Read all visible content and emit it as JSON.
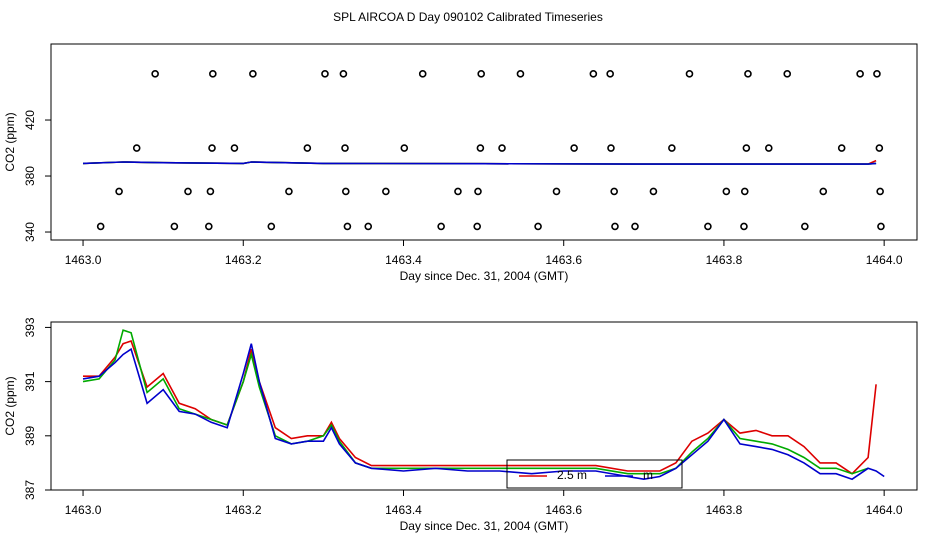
{
  "title": "SPL AIRCOA D  Day 090102  Calibrated Timeseries",
  "chart_data": [
    {
      "type": "line",
      "xlabel": "Day since Dec. 31, 2004 (GMT)",
      "ylabel": "CO2 (ppm)",
      "xlim": [
        1462.96,
        1464.041
      ],
      "ylim": [
        334.3,
        474.3
      ],
      "xticks": [
        {
          "value": 1463,
          "label": "1463.0"
        },
        {
          "value": 1463.2,
          "label": "1463.2"
        },
        {
          "value": 1463.4,
          "label": "1463.4"
        },
        {
          "value": 1463.6,
          "label": "1463.6"
        },
        {
          "value": 1463.8,
          "label": "1463.8"
        },
        {
          "value": 1464,
          "label": "1464.0"
        }
      ],
      "yticks": [
        340,
        380,
        420
      ],
      "x": [
        1463.0,
        1463.05,
        1463.1,
        1463.2,
        1463.21,
        1463.3,
        1463.5,
        1463.7,
        1463.9,
        1463.98,
        1463.99
      ],
      "series": [
        {
          "color": "#dd0000",
          "values": [
            389,
            390,
            389.5,
            389,
            390,
            389,
            388.8,
            388.5,
            388.5,
            388.5,
            391
          ]
        },
        {
          "color": "#00aa00",
          "values": [
            389,
            390,
            389.5,
            389,
            390,
            389,
            388.8,
            388.5,
            388.5,
            388.5,
            389
          ]
        },
        {
          "color": "#0000cc",
          "values": [
            389,
            390,
            389.5,
            389,
            390,
            389,
            388.8,
            388.5,
            388.5,
            388.5,
            389
          ]
        }
      ],
      "points": {
        "color": "#000000",
        "x": [
          1463.09,
          1463.162,
          1463.212,
          1463.302,
          1463.325,
          1463.424,
          1463.497,
          1463.546,
          1463.637,
          1463.658,
          1463.757,
          1463.83,
          1463.879,
          1463.97,
          1463.991,
          1463.067,
          1463.161,
          1463.189,
          1463.28,
          1463.327,
          1463.401,
          1463.496,
          1463.523,
          1463.613,
          1463.659,
          1463.735,
          1463.828,
          1463.856,
          1463.947,
          1463.994,
          1463.045,
          1463.131,
          1463.159,
          1463.257,
          1463.328,
          1463.378,
          1463.468,
          1463.493,
          1463.591,
          1463.663,
          1463.712,
          1463.803,
          1463.826,
          1463.924,
          1463.995,
          1463.022,
          1463.114,
          1463.157,
          1463.235,
          1463.33,
          1463.356,
          1463.447,
          1463.492,
          1463.568,
          1463.664,
          1463.689,
          1463.78,
          1463.825,
          1463.901,
          1463.996
        ],
        "values": [
          453,
          453,
          453,
          453,
          453,
          453,
          453,
          453,
          453,
          453,
          453,
          453,
          453,
          453,
          453,
          400,
          400,
          400,
          400,
          400,
          400,
          400,
          400,
          400,
          400,
          400,
          400,
          400,
          400,
          400,
          369,
          369,
          369,
          369,
          369,
          369,
          369,
          369,
          369,
          369,
          369,
          369,
          369,
          369,
          369,
          344,
          344,
          344,
          344,
          344,
          344,
          344,
          344,
          344,
          344,
          344,
          344,
          344,
          344,
          344
        ]
      }
    },
    {
      "type": "line",
      "xlabel": "Day since Dec. 31, 2004 (GMT)",
      "ylabel": "CO2 (ppm)",
      "xlim": [
        1462.96,
        1464.041
      ],
      "ylim": [
        387,
        393.2
      ],
      "xticks": [
        {
          "value": 1463,
          "label": "1463.0"
        },
        {
          "value": 1463.2,
          "label": "1463.2"
        },
        {
          "value": 1463.4,
          "label": "1463.4"
        },
        {
          "value": 1463.6,
          "label": "1463.6"
        },
        {
          "value": 1463.8,
          "label": "1463.8"
        },
        {
          "value": 1464,
          "label": "1464.0"
        }
      ],
      "yticks": [
        387,
        389,
        391,
        393
      ],
      "x": [
        1463.0,
        1463.02,
        1463.04,
        1463.05,
        1463.06,
        1463.08,
        1463.1,
        1463.12,
        1463.14,
        1463.16,
        1463.18,
        1463.2,
        1463.21,
        1463.22,
        1463.24,
        1463.26,
        1463.28,
        1463.3,
        1463.31,
        1463.32,
        1463.34,
        1463.36,
        1463.4,
        1463.44,
        1463.48,
        1463.52,
        1463.56,
        1463.6,
        1463.64,
        1463.68,
        1463.7,
        1463.72,
        1463.74,
        1463.76,
        1463.78,
        1463.8,
        1463.82,
        1463.84,
        1463.86,
        1463.88,
        1463.9,
        1463.92,
        1463.94,
        1463.96,
        1463.98,
        1463.99,
        1464.0
      ],
      "series": [
        {
          "name": "2.5 m",
          "color": "#dd0000",
          "values": [
            391.2,
            391.2,
            391.9,
            392.4,
            392.5,
            390.8,
            391.3,
            390.2,
            390.0,
            389.6,
            389.4,
            391.0,
            392.2,
            391.0,
            389.3,
            388.9,
            389.0,
            389.0,
            389.5,
            388.9,
            388.2,
            387.9,
            387.9,
            387.9,
            387.9,
            387.9,
            387.9,
            387.9,
            387.9,
            387.7,
            387.7,
            387.7,
            388.0,
            388.8,
            389.1,
            389.6,
            389.1,
            389.2,
            389.0,
            389.0,
            388.6,
            388.0,
            388.0,
            387.6,
            388.2,
            390.9,
            null
          ]
        },
        {
          "color": "#00aa00",
          "values": [
            391.0,
            391.1,
            391.8,
            392.9,
            392.8,
            390.6,
            391.1,
            390.0,
            389.8,
            389.6,
            389.4,
            391.0,
            392.0,
            390.8,
            389.0,
            388.7,
            388.8,
            389.0,
            389.4,
            388.8,
            388.0,
            387.8,
            387.8,
            387.8,
            387.8,
            387.8,
            387.8,
            387.8,
            387.8,
            387.6,
            387.6,
            387.6,
            387.8,
            388.4,
            388.9,
            389.6,
            388.9,
            388.8,
            388.7,
            388.5,
            388.2,
            387.8,
            387.8,
            387.6,
            387.8,
            null,
            null
          ]
        },
        {
          "name": "m",
          "color": "#0000cc",
          "values": [
            391.1,
            391.2,
            391.7,
            392.0,
            392.2,
            390.2,
            390.7,
            389.9,
            389.8,
            389.5,
            389.3,
            391.3,
            392.4,
            391.0,
            388.9,
            388.7,
            388.8,
            388.8,
            389.3,
            388.7,
            388.0,
            387.8,
            387.7,
            387.8,
            387.7,
            387.7,
            387.6,
            387.7,
            387.7,
            387.5,
            387.4,
            387.5,
            387.8,
            388.3,
            388.8,
            389.6,
            388.7,
            388.6,
            388.5,
            388.3,
            388.0,
            387.6,
            387.6,
            387.4,
            387.8,
            387.7,
            387.5
          ]
        }
      ]
    }
  ]
}
